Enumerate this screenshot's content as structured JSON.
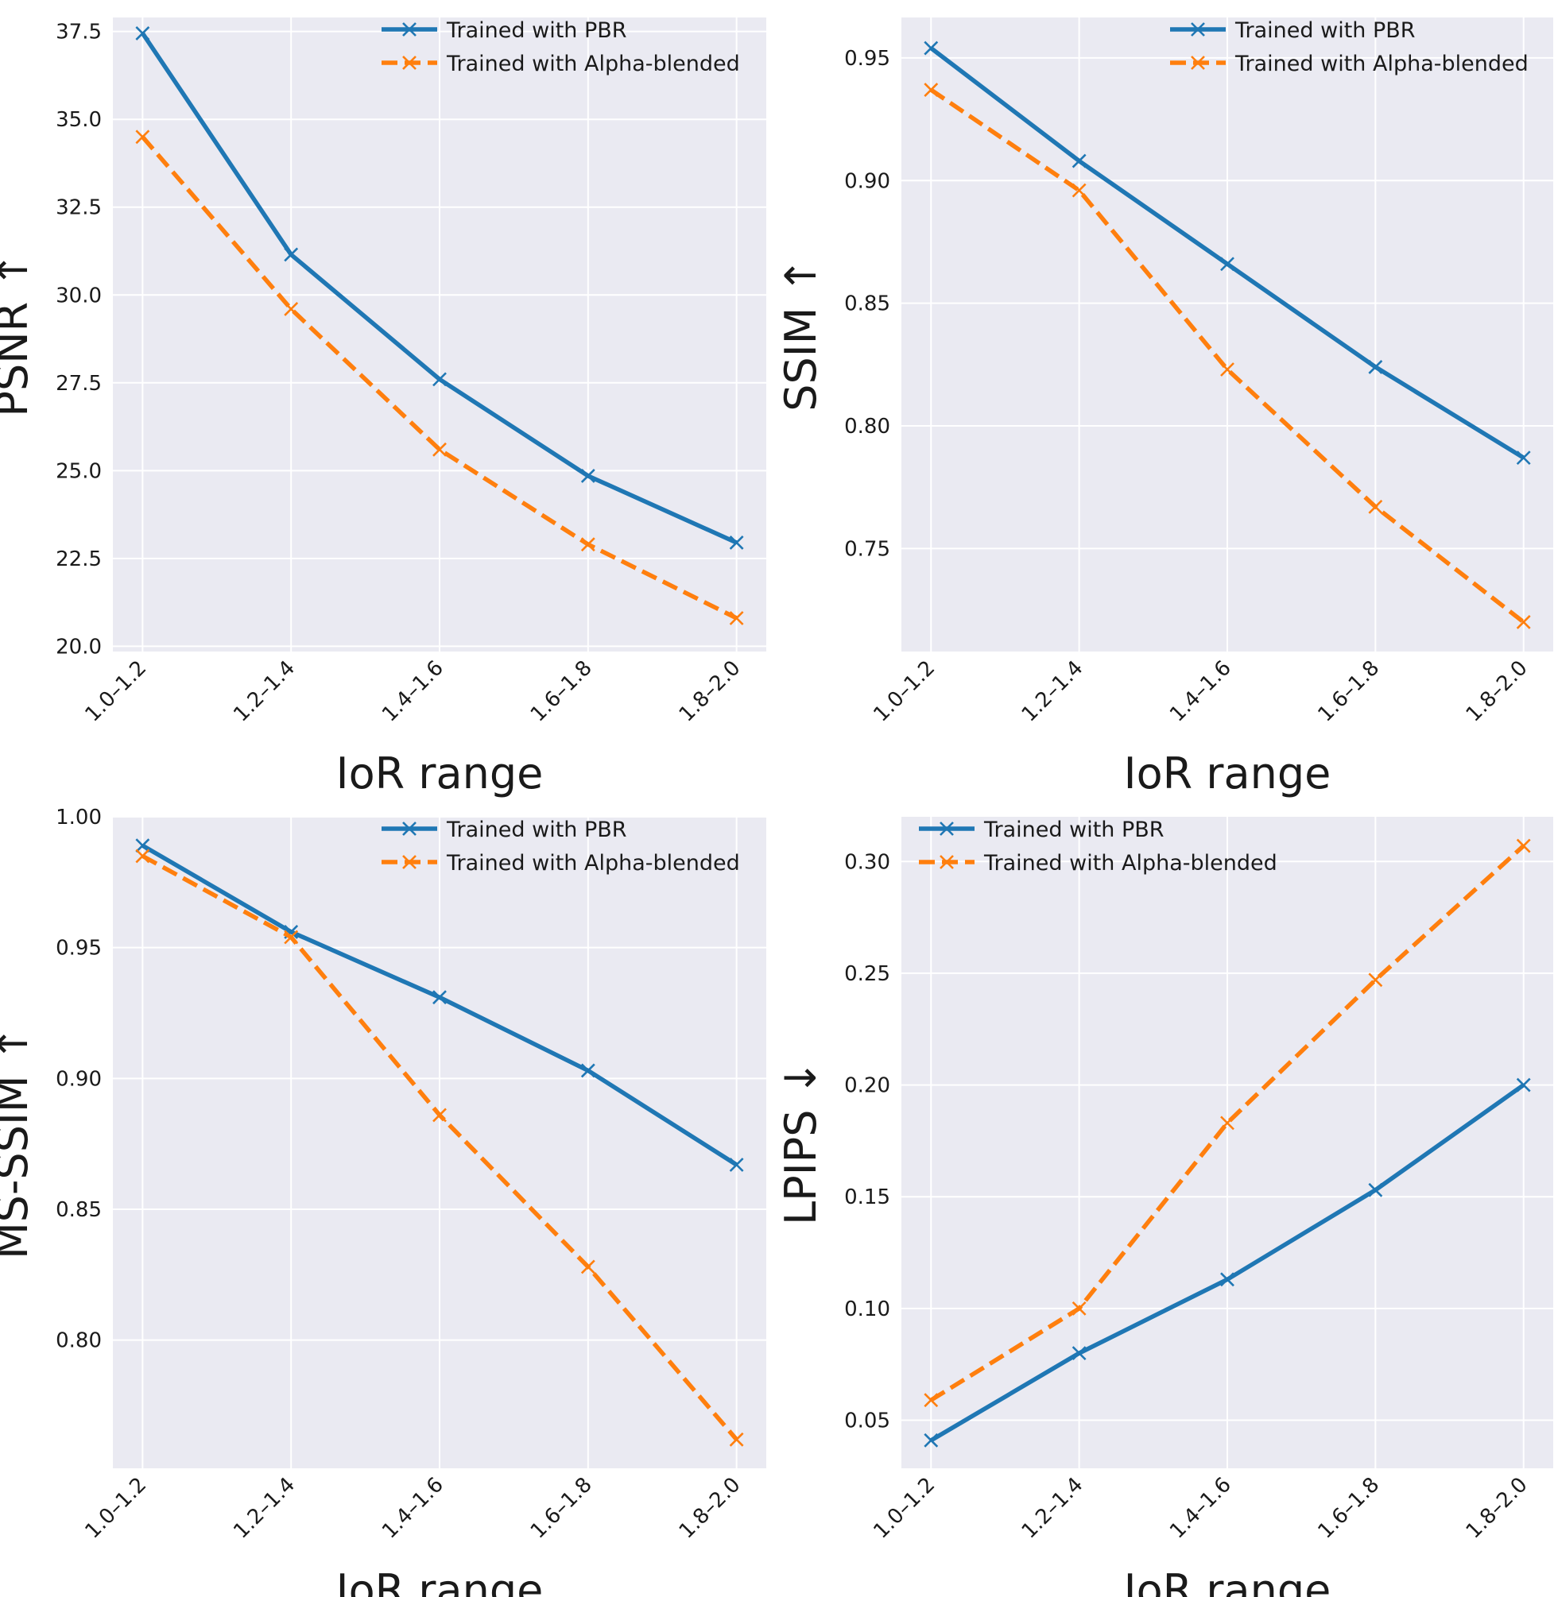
{
  "colors": {
    "background": "#eaeaf2",
    "grid": "#ffffff",
    "pbr": "#1f77b4",
    "alpha": "#ff7f0e"
  },
  "chart_data": [
    {
      "type": "line",
      "title": "",
      "xlabel": "IoR range",
      "ylabel": "PSNR ↑",
      "categories": [
        "1.0–1.2",
        "1.2–1.4",
        "1.4–1.6",
        "1.6–1.8",
        "1.8–2.0"
      ],
      "ylim": [
        19.85,
        37.9
      ],
      "yticks": [
        20.0,
        22.5,
        25.0,
        27.5,
        30.0,
        32.5,
        35.0,
        37.5
      ],
      "ytick_labels": [
        "20.0",
        "22.5",
        "25.0",
        "27.5",
        "30.0",
        "32.5",
        "35.0",
        "37.5"
      ],
      "legend_position": "top-right",
      "series": [
        {
          "name": "Trained with PBR",
          "style": "solid",
          "color_key": "pbr",
          "values": [
            37.45,
            31.15,
            27.6,
            24.85,
            22.95
          ]
        },
        {
          "name": "Trained with Alpha-blended",
          "style": "dashed",
          "color_key": "alpha",
          "values": [
            34.5,
            29.6,
            25.6,
            22.9,
            20.8
          ]
        }
      ]
    },
    {
      "type": "line",
      "title": "",
      "xlabel": "IoR range",
      "ylabel": "SSIM ↑",
      "categories": [
        "1.0–1.2",
        "1.2–1.4",
        "1.4–1.6",
        "1.6–1.8",
        "1.8–2.0"
      ],
      "ylim": [
        0.708,
        0.9665
      ],
      "yticks": [
        0.75,
        0.8,
        0.85,
        0.9,
        0.95
      ],
      "ytick_labels": [
        "0.75",
        "0.80",
        "0.85",
        "0.90",
        "0.95"
      ],
      "legend_position": "top-right",
      "series": [
        {
          "name": "Trained with PBR",
          "style": "solid",
          "color_key": "pbr",
          "values": [
            0.954,
            0.908,
            0.866,
            0.824,
            0.787
          ]
        },
        {
          "name": "Trained with Alpha-blended",
          "style": "dashed",
          "color_key": "alpha",
          "values": [
            0.937,
            0.896,
            0.823,
            0.767,
            0.72
          ]
        }
      ]
    },
    {
      "type": "line",
      "title": "",
      "xlabel": "IoR range",
      "ylabel": "MS-SSIM ↑",
      "categories": [
        "1.0–1.2",
        "1.2–1.4",
        "1.4–1.6",
        "1.6–1.8",
        "1.8–2.0"
      ],
      "ylim": [
        0.751,
        1.0
      ],
      "yticks": [
        0.8,
        0.85,
        0.9,
        0.95,
        1.0
      ],
      "ytick_labels": [
        "0.80",
        "0.85",
        "0.90",
        "0.95",
        "1.00"
      ],
      "legend_position": "top-right",
      "series": [
        {
          "name": "Trained with PBR",
          "style": "solid",
          "color_key": "pbr",
          "values": [
            0.989,
            0.956,
            0.931,
            0.903,
            0.867
          ]
        },
        {
          "name": "Trained with Alpha-blended",
          "style": "dashed",
          "color_key": "alpha",
          "values": [
            0.985,
            0.954,
            0.886,
            0.828,
            0.762
          ]
        }
      ]
    },
    {
      "type": "line",
      "title": "",
      "xlabel": "IoR range",
      "ylabel": "LPIPS ↓",
      "categories": [
        "1.0–1.2",
        "1.2–1.4",
        "1.4–1.6",
        "1.6–1.8",
        "1.8–2.0"
      ],
      "ylim": [
        0.0285,
        0.32
      ],
      "yticks": [
        0.05,
        0.1,
        0.15,
        0.2,
        0.25,
        0.3
      ],
      "ytick_labels": [
        "0.05",
        "0.10",
        "0.15",
        "0.20",
        "0.25",
        "0.30"
      ],
      "legend_position": "top-left",
      "series": [
        {
          "name": "Trained with PBR",
          "style": "solid",
          "color_key": "pbr",
          "values": [
            0.041,
            0.08,
            0.113,
            0.153,
            0.2
          ]
        },
        {
          "name": "Trained with Alpha-blended",
          "style": "dashed",
          "color_key": "alpha",
          "values": [
            0.059,
            0.1,
            0.183,
            0.247,
            0.307
          ]
        }
      ]
    }
  ]
}
